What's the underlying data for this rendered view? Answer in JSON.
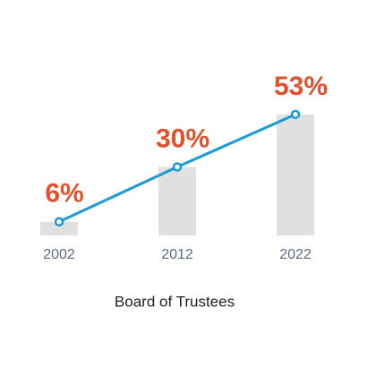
{
  "chart_data": {
    "type": "bar",
    "title": "Board of Trustees",
    "categories": [
      "2002",
      "2012",
      "2022"
    ],
    "values": [
      6,
      30,
      53
    ],
    "value_labels": [
      "6%",
      "30%",
      "53%"
    ],
    "color": "#e0e0e0",
    "line_color": "#1a9ad6",
    "label_color": "#e2512a"
  }
}
